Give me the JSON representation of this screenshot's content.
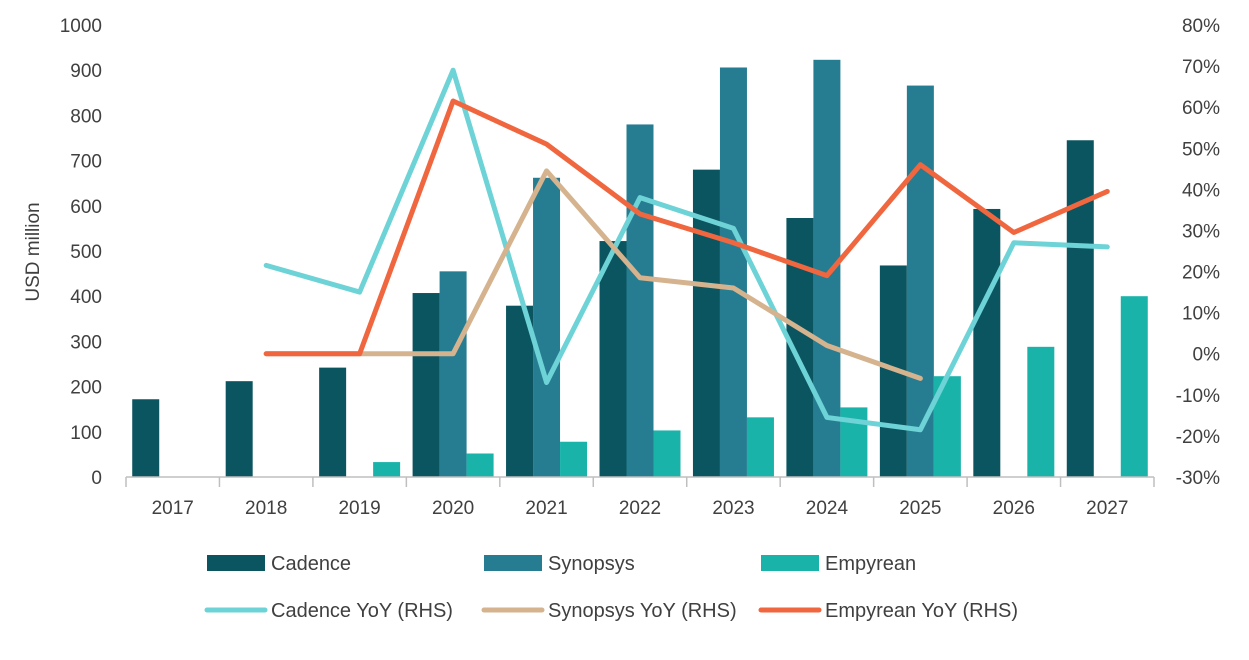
{
  "chart_data": {
    "type": "bar",
    "categories": [
      "2017",
      "2018",
      "2019",
      "2020",
      "2021",
      "2022",
      "2023",
      "2024",
      "2025",
      "2026",
      "2027"
    ],
    "ylabel": "USD million",
    "ylim": [
      0,
      1000
    ],
    "y_ticks": [
      "0",
      "100",
      "200",
      "300",
      "400",
      "500",
      "600",
      "700",
      "800",
      "900",
      "1000"
    ],
    "y2lim": [
      -30,
      80
    ],
    "y2_ticks": [
      "-30%",
      "-20%",
      "-10%",
      "0%",
      "10%",
      "20%",
      "30%",
      "40%",
      "50%",
      "60%",
      "70%",
      "80%"
    ],
    "grid": false,
    "legend_position": "bottom",
    "bar_series": [
      {
        "name": "Cadence",
        "color": "#0b5560",
        "values": [
          172,
          212,
          242,
          407,
          379,
          522,
          680,
          573,
          468,
          593,
          745
        ]
      },
      {
        "name": "Synopsys",
        "color": "#267d91",
        "values": [
          null,
          null,
          null,
          455,
          662,
          780,
          906,
          923,
          866,
          null,
          null
        ]
      },
      {
        "name": "Empyrean",
        "color": "#1ab3aa",
        "values": [
          null,
          null,
          33,
          52,
          78,
          103,
          132,
          154,
          223,
          288,
          400
        ]
      }
    ],
    "line_series": [
      {
        "name": "Cadence YoY (RHS)",
        "color": "#6dd3d6",
        "values": [
          null,
          21.5,
          15,
          69,
          -7,
          38,
          30.5,
          -15.5,
          -18.5,
          27,
          26
        ]
      },
      {
        "name": "Synopsys YoY (RHS)",
        "color": "#d5b38e",
        "values": [
          null,
          0,
          0,
          0,
          44.5,
          18.5,
          16,
          2,
          -6,
          null,
          null
        ]
      },
      {
        "name": "Empyrean YoY (RHS)",
        "color": "#f0663f",
        "values": [
          null,
          0,
          0,
          61.5,
          51,
          34,
          27,
          19,
          46,
          29.5,
          39.5
        ]
      }
    ]
  }
}
